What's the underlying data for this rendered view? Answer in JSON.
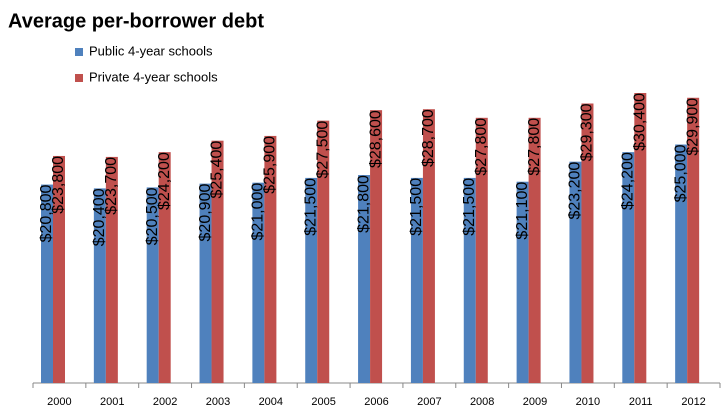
{
  "chart_data": {
    "type": "bar",
    "title": "Average per-borrower debt",
    "categories": [
      "2000",
      "2001",
      "2002",
      "2003",
      "2004",
      "2005",
      "2006",
      "2007",
      "2008",
      "2009",
      "2010",
      "2011",
      "2012"
    ],
    "series": [
      {
        "name": "Public 4-year schools",
        "color": "#4f81bd",
        "values": [
          20800,
          20400,
          20500,
          20900,
          21000,
          21500,
          21800,
          21500,
          21500,
          21100,
          23200,
          24200,
          25000
        ],
        "value_labels": [
          "$20,800",
          "$20,400",
          "$20,500",
          "$20,900",
          "$21,000",
          "$21,500",
          "$21,800",
          "$21,500",
          "$21,500",
          "$21,100",
          "$23,200",
          "$24,200",
          "$25,000"
        ]
      },
      {
        "name": "Private 4-year schools",
        "color": "#c0504d",
        "values": [
          23800,
          23700,
          24200,
          25400,
          25900,
          27500,
          28600,
          28700,
          27800,
          27800,
          29300,
          30400,
          29900
        ],
        "value_labels": [
          "$23,800",
          "$23,700",
          "$24,200",
          "$25,400",
          "$25,900",
          "$27,500",
          "$28,600",
          "$28,700",
          "$27,800",
          "$27,800",
          "$29,300",
          "$30,400",
          "$29,900"
        ]
      }
    ]
  }
}
